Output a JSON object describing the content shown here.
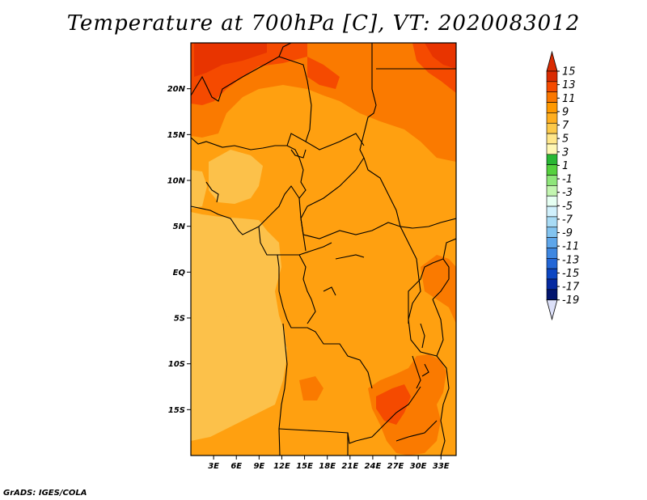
{
  "title": "Temperature at 700hPa [C], VT: 2020083012",
  "credit": "GrADS: IGES/COLA",
  "map": {
    "projection": "latlon",
    "lon_range": [
      0,
      35
    ],
    "lat_range": [
      -20,
      25
    ],
    "x_ticks": [
      {
        "lon": 3,
        "label": "3E"
      },
      {
        "lon": 6,
        "label": "6E"
      },
      {
        "lon": 9,
        "label": "9E"
      },
      {
        "lon": 12,
        "label": "12E"
      },
      {
        "lon": 15,
        "label": "15E"
      },
      {
        "lon": 18,
        "label": "18E"
      },
      {
        "lon": 21,
        "label": "21E"
      },
      {
        "lon": 24,
        "label": "24E"
      },
      {
        "lon": 27,
        "label": "27E"
      },
      {
        "lon": 30,
        "label": "30E"
      },
      {
        "lon": 33,
        "label": "33E"
      }
    ],
    "y_ticks": [
      {
        "lat": 20,
        "label": "20N"
      },
      {
        "lat": 15,
        "label": "15N"
      },
      {
        "lat": 10,
        "label": "10N"
      },
      {
        "lat": 5,
        "label": "5N"
      },
      {
        "lat": 0,
        "label": "EQ"
      },
      {
        "lat": -5,
        "label": "5S"
      },
      {
        "lat": -10,
        "label": "10S"
      },
      {
        "lat": -15,
        "label": "15S"
      }
    ]
  },
  "colorbar": {
    "labels": [
      "15",
      "13",
      "11",
      "9",
      "7",
      "5",
      "3",
      "1",
      "-1",
      "-3",
      "-5",
      "-7",
      "-9",
      "-11",
      "-13",
      "-15",
      "-17",
      "-19"
    ],
    "colors": [
      "#d92b02",
      "#f54a00",
      "#fa7700",
      "#ff9900",
      "#ffae1f",
      "#fcc94a",
      "#ffe68a",
      "#fff7b5",
      "#29b734",
      "#55d13e",
      "#8ee67a",
      "#c2f5b0",
      "#e6fff2",
      "#d0f0fc",
      "#a8dbf5",
      "#82c3ef",
      "#5ea6ea",
      "#3e87e1",
      "#2266d6",
      "#0c46c2",
      "#062aa0",
      "#03156e",
      "#dce0f8"
    ],
    "top_triangle_color": "#d92b02",
    "bottom_triangle_color": "#dce0f8"
  },
  "fill_colors": {
    "base": "#ffa010",
    "light": "#fcc14a",
    "warm": "#fa7a00",
    "hot": "#f54a00",
    "hotter": "#e83400"
  }
}
